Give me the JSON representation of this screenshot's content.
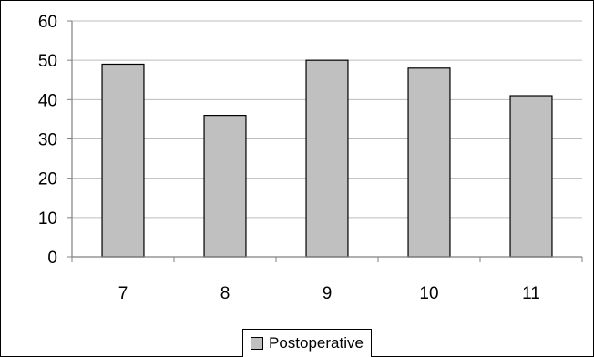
{
  "chart_data": {
    "type": "bar",
    "categories": [
      "7",
      "8",
      "9",
      "10",
      "11"
    ],
    "series": [
      {
        "name": "Postoperative",
        "values": [
          49,
          36,
          50,
          48,
          41
        ]
      }
    ],
    "title": "",
    "xlabel": "",
    "ylabel": "",
    "ylim": [
      0,
      60
    ],
    "yticks": [
      "0",
      "10",
      "20",
      "30",
      "40",
      "50",
      "60"
    ],
    "grid": true,
    "legend": "bottom-center",
    "colors": {
      "bar": "#c0c0c0",
      "bar_stroke": "#000000",
      "grid": "#bdbdbd",
      "axis": "#808080"
    }
  }
}
